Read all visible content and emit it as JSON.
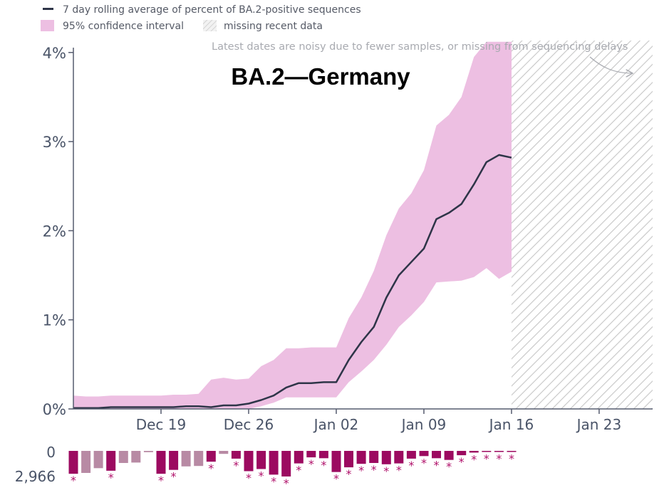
{
  "legend": {
    "line_label": "7 day rolling average of percent of BA.2-positive sequences",
    "ci_label": "95% confidence interval",
    "missing_label": "missing recent data"
  },
  "note": "Latest dates are noisy due to fewer samples, or missing from sequencing delays",
  "title": "BA.2—Germany",
  "colors": {
    "line": "#2e3548",
    "ci_fill": "#edbfe2",
    "axis": "#555b6e",
    "bar_dark": "#9c0a60",
    "bar_light": "#b88aa4",
    "hatch": "#c8c8c8"
  },
  "chart_data": [
    {
      "type": "line",
      "title": "BA.2—Germany",
      "xlabel": "",
      "ylabel": "",
      "x_ticks": [
        "Dec 19",
        "Dec 26",
        "Jan 02",
        "Jan 09",
        "Jan 16",
        "Jan 23"
      ],
      "x_tick_days": [
        7,
        14,
        21,
        28,
        35,
        42
      ],
      "x_range_days": [
        0,
        46.5
      ],
      "y_ticks": [
        "0%",
        "1%",
        "2%",
        "3%",
        "4%"
      ],
      "y_tick_values": [
        0,
        1,
        2,
        3,
        4
      ],
      "ylim": [
        0,
        4
      ],
      "missing_data_start_day": 35,
      "series": [
        {
          "name": "7 day rolling average of percent of BA.2-positive sequences",
          "x": [
            0,
            1,
            2,
            3,
            4,
            5,
            6,
            7,
            8,
            9,
            10,
            11,
            12,
            13,
            14,
            15,
            16,
            17,
            18,
            19,
            20,
            21,
            22,
            23,
            24,
            25,
            26,
            27,
            28,
            29,
            30,
            31,
            32,
            33,
            34,
            35
          ],
          "values": [
            0.01,
            0.01,
            0.01,
            0.02,
            0.02,
            0.02,
            0.02,
            0.02,
            0.02,
            0.03,
            0.03,
            0.02,
            0.04,
            0.04,
            0.06,
            0.1,
            0.15,
            0.24,
            0.29,
            0.29,
            0.3,
            0.3,
            0.55,
            0.75,
            0.92,
            1.25,
            1.5,
            1.65,
            1.8,
            2.13,
            2.2,
            2.3,
            2.52,
            2.77,
            2.85,
            2.82
          ]
        },
        {
          "name": "95% confidence interval (upper)",
          "x": [
            0,
            1,
            2,
            3,
            4,
            5,
            6,
            7,
            8,
            9,
            10,
            11,
            12,
            13,
            14,
            15,
            16,
            17,
            18,
            19,
            20,
            21,
            22,
            23,
            24,
            25,
            26,
            27,
            28,
            29,
            30,
            31,
            32,
            33,
            34,
            35
          ],
          "values": [
            0.15,
            0.14,
            0.14,
            0.15,
            0.15,
            0.15,
            0.15,
            0.15,
            0.16,
            0.16,
            0.17,
            0.33,
            0.35,
            0.33,
            0.34,
            0.48,
            0.55,
            0.68,
            0.68,
            0.69,
            0.69,
            0.69,
            1.02,
            1.25,
            1.55,
            1.95,
            2.25,
            2.42,
            2.68,
            3.18,
            3.3,
            3.5,
            3.95,
            4.13,
            4.13,
            4.13
          ]
        },
        {
          "name": "95% confidence interval (lower)",
          "x": [
            0,
            1,
            2,
            3,
            4,
            5,
            6,
            7,
            8,
            9,
            10,
            11,
            12,
            13,
            14,
            15,
            16,
            17,
            18,
            19,
            20,
            21,
            22,
            23,
            24,
            25,
            26,
            27,
            28,
            29,
            30,
            31,
            32,
            33,
            34,
            35
          ],
          "values": [
            0,
            0,
            0,
            0,
            0,
            0,
            0,
            0,
            0,
            0,
            0,
            0,
            0,
            0,
            0,
            0.03,
            0.07,
            0.13,
            0.13,
            0.13,
            0.13,
            0.13,
            0.3,
            0.42,
            0.55,
            0.72,
            0.92,
            1.05,
            1.2,
            1.42,
            1.43,
            1.44,
            1.48,
            1.58,
            1.46,
            1.54
          ]
        }
      ]
    },
    {
      "type": "bar",
      "title": "",
      "ylabel": "",
      "y_ticks": [
        "0",
        "2,966"
      ],
      "ylim": [
        0,
        2966
      ],
      "note": "sequence counts per day, drawn downward; starred bars are flagged low-sample days",
      "x": [
        0,
        1,
        2,
        3,
        4,
        5,
        6,
        7,
        8,
        9,
        10,
        11,
        12,
        13,
        14,
        15,
        16,
        17,
        18,
        19,
        20,
        21,
        22,
        23,
        24,
        25,
        26,
        27,
        28,
        29,
        30,
        31,
        32,
        33,
        34,
        35
      ],
      "values": [
        2650,
        2550,
        2000,
        2300,
        1400,
        1350,
        150,
        2650,
        2200,
        1800,
        1750,
        1250,
        350,
        900,
        2350,
        2100,
        2750,
        2966,
        1450,
        750,
        850,
        2450,
        1900,
        1500,
        1400,
        1550,
        1450,
        900,
        600,
        850,
        1050,
        500,
        200,
        120,
        70,
        40
      ],
      "starred": [
        true,
        false,
        false,
        true,
        false,
        false,
        false,
        true,
        true,
        false,
        false,
        true,
        false,
        true,
        true,
        true,
        true,
        true,
        true,
        true,
        true,
        true,
        true,
        true,
        true,
        true,
        true,
        true,
        true,
        true,
        true,
        true,
        true,
        true,
        true,
        true
      ],
      "light": [
        false,
        true,
        true,
        false,
        true,
        true,
        true,
        false,
        false,
        true,
        true,
        false,
        true,
        false,
        false,
        false,
        false,
        false,
        false,
        false,
        false,
        false,
        false,
        false,
        false,
        false,
        false,
        false,
        false,
        false,
        false,
        false,
        false,
        false,
        false,
        false
      ]
    }
  ]
}
